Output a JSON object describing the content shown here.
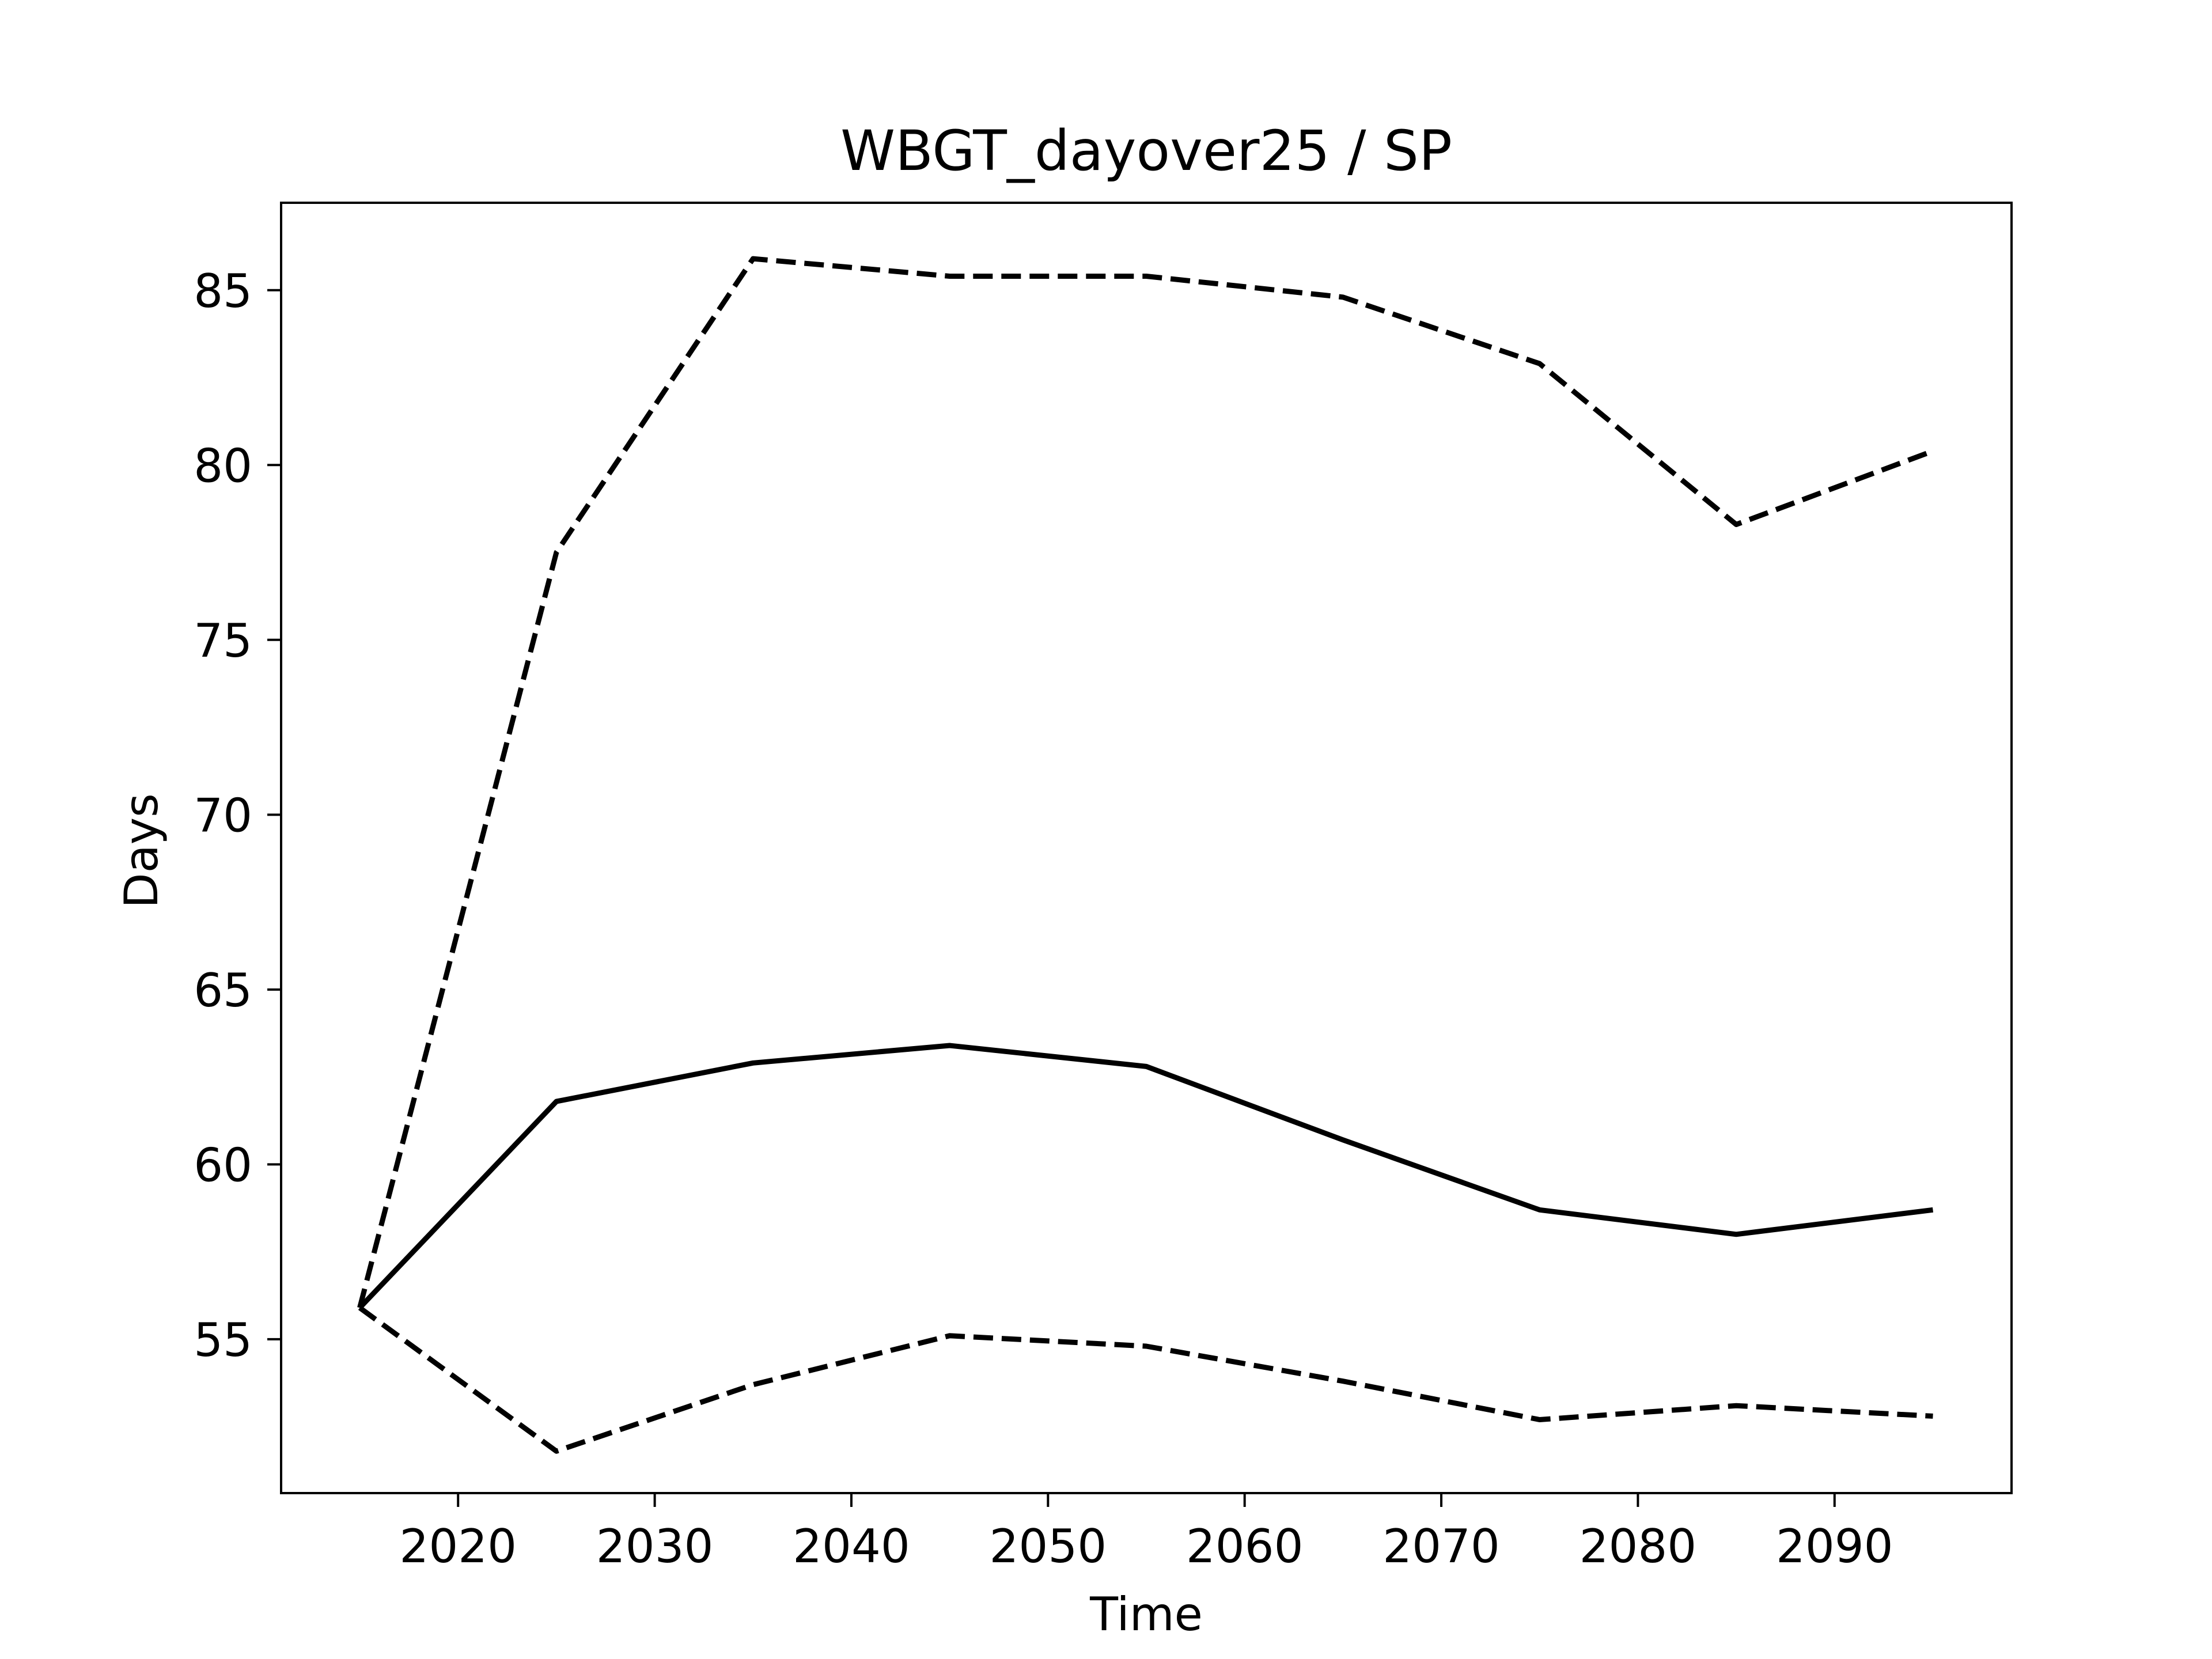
{
  "chart_data": {
    "type": "line",
    "title": "WBGT_dayover25 / SP",
    "xlabel": "Time",
    "ylabel": "Days",
    "x": [
      2015,
      2025,
      2035,
      2045,
      2055,
      2065,
      2075,
      2085,
      2095
    ],
    "series": [
      {
        "style": "solid",
        "color": "#000000",
        "values": [
          55.9,
          61.8,
          62.9,
          63.4,
          62.8,
          60.7,
          58.7,
          58.0,
          58.7
        ]
      },
      {
        "style": "dashed",
        "color": "#000000",
        "values": [
          55.9,
          77.5,
          85.9,
          85.4,
          85.4,
          84.8,
          82.9,
          78.3,
          80.4
        ]
      },
      {
        "style": "dashed",
        "color": "#000000",
        "values": [
          55.9,
          51.8,
          53.7,
          55.1,
          54.8,
          53.8,
          52.7,
          53.1,
          52.8
        ]
      }
    ],
    "xticks": [
      2020,
      2030,
      2040,
      2050,
      2060,
      2070,
      2080,
      2090
    ],
    "yticks": [
      55,
      60,
      65,
      70,
      75,
      80,
      85
    ],
    "xlim": [
      2011,
      2099
    ],
    "ylim": [
      50.6,
      87.5
    ],
    "grid": false,
    "legend": "none"
  }
}
